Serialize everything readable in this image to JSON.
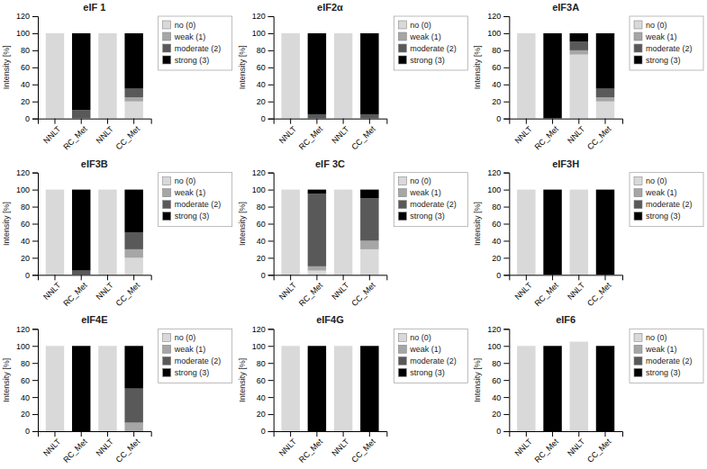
{
  "chart_data": [
    {
      "type": "bar",
      "title": "eIF 1",
      "stacked": true,
      "grid": false,
      "legend": "right",
      "categories": [
        "NNLT",
        "RC_Met",
        "NNLT",
        "CC_Met"
      ],
      "y_label": "Intensity [%]",
      "ylim": [
        0,
        120
      ],
      "yticks": [
        0,
        20,
        40,
        60,
        80,
        100,
        120
      ],
      "series": [
        {
          "name": "no (0)",
          "color": "#d9d9d9",
          "values": [
            100,
            0,
            100,
            20
          ]
        },
        {
          "name": "weak (1)",
          "color": "#a6a6a6",
          "values": [
            0,
            0,
            0,
            5
          ]
        },
        {
          "name": "moderate (2)",
          "color": "#595959",
          "values": [
            0,
            10,
            0,
            10
          ]
        },
        {
          "name": "strong (3)",
          "color": "#000000",
          "values": [
            0,
            90,
            0,
            65
          ]
        }
      ]
    },
    {
      "type": "bar",
      "title": "eIF2α",
      "stacked": true,
      "grid": false,
      "legend": "right",
      "categories": [
        "NNLT",
        "RC_Met",
        "NNLT",
        "CC_Met"
      ],
      "y_label": "Intensity [%]",
      "ylim": [
        0,
        120
      ],
      "yticks": [
        0,
        20,
        40,
        60,
        80,
        100,
        120
      ],
      "series": [
        {
          "name": "no (0)",
          "color": "#d9d9d9",
          "values": [
            100,
            0,
            100,
            0
          ]
        },
        {
          "name": "weak (1)",
          "color": "#a6a6a6",
          "values": [
            0,
            0,
            0,
            0
          ]
        },
        {
          "name": "moderate (2)",
          "color": "#595959",
          "values": [
            0,
            5,
            0,
            5
          ]
        },
        {
          "name": "strong (3)",
          "color": "#000000",
          "values": [
            0,
            95,
            0,
            95
          ]
        }
      ]
    },
    {
      "type": "bar",
      "title": "eIF3A",
      "stacked": true,
      "grid": false,
      "legend": "right",
      "categories": [
        "NNLT",
        "RC_Met",
        "NNLT",
        "CC_Met"
      ],
      "y_label": "Intensity [%]",
      "ylim": [
        0,
        120
      ],
      "yticks": [
        0,
        20,
        40,
        60,
        80,
        100,
        120
      ],
      "series": [
        {
          "name": "no (0)",
          "color": "#d9d9d9",
          "values": [
            100,
            0,
            75,
            20
          ]
        },
        {
          "name": "weak (1)",
          "color": "#a6a6a6",
          "values": [
            0,
            0,
            5,
            5
          ]
        },
        {
          "name": "moderate (2)",
          "color": "#595959",
          "values": [
            0,
            0,
            10,
            10
          ]
        },
        {
          "name": "strong (3)",
          "color": "#000000",
          "values": [
            0,
            100,
            10,
            65
          ]
        }
      ]
    },
    {
      "type": "bar",
      "title": "eIF3B",
      "stacked": true,
      "grid": false,
      "legend": "right",
      "categories": [
        "NNLT",
        "RC_Met",
        "NNLT",
        "CC_Met"
      ],
      "y_label": "Intensity [%]",
      "ylim": [
        0,
        120
      ],
      "yticks": [
        0,
        20,
        40,
        60,
        80,
        100,
        120
      ],
      "series": [
        {
          "name": "no (0)",
          "color": "#d9d9d9",
          "values": [
            100,
            0,
            100,
            20
          ]
        },
        {
          "name": "weak (1)",
          "color": "#a6a6a6",
          "values": [
            0,
            0,
            0,
            10
          ]
        },
        {
          "name": "moderate (2)",
          "color": "#595959",
          "values": [
            0,
            5,
            0,
            20
          ]
        },
        {
          "name": "strong (3)",
          "color": "#000000",
          "values": [
            0,
            95,
            0,
            50
          ]
        }
      ]
    },
    {
      "type": "bar",
      "title": "eIF 3C",
      "stacked": true,
      "grid": false,
      "legend": "right",
      "categories": [
        "NNLT",
        "RC_Met",
        "NNLT",
        "CC_Met"
      ],
      "y_label": "Intensity [%]",
      "ylim": [
        0,
        120
      ],
      "yticks": [
        0,
        20,
        40,
        60,
        80,
        100,
        120
      ],
      "series": [
        {
          "name": "no (0)",
          "color": "#d9d9d9",
          "values": [
            100,
            5,
            100,
            30
          ]
        },
        {
          "name": "weak (1)",
          "color": "#a6a6a6",
          "values": [
            0,
            5,
            0,
            10
          ]
        },
        {
          "name": "moderate (2)",
          "color": "#595959",
          "values": [
            0,
            85,
            0,
            50
          ]
        },
        {
          "name": "strong (3)",
          "color": "#000000",
          "values": [
            0,
            5,
            0,
            10
          ]
        }
      ]
    },
    {
      "type": "bar",
      "title": "eIF3H",
      "stacked": true,
      "grid": false,
      "legend": "right",
      "categories": [
        "NNLT",
        "RC_Met",
        "NNLT",
        "CC_Met"
      ],
      "y_label": "Intensity [%]",
      "ylim": [
        0,
        120
      ],
      "yticks": [
        0,
        20,
        40,
        60,
        80,
        100,
        120
      ],
      "series": [
        {
          "name": "no (0)",
          "color": "#d9d9d9",
          "values": [
            100,
            0,
            100,
            0
          ]
        },
        {
          "name": "weak (1)",
          "color": "#a6a6a6",
          "values": [
            0,
            0,
            0,
            0
          ]
        },
        {
          "name": "moderate (2)",
          "color": "#595959",
          "values": [
            0,
            0,
            0,
            0
          ]
        },
        {
          "name": "strong (3)",
          "color": "#000000",
          "values": [
            0,
            100,
            0,
            100
          ]
        }
      ]
    },
    {
      "type": "bar",
      "title": "eIF4E",
      "stacked": true,
      "grid": false,
      "legend": "right",
      "categories": [
        "NNLT",
        "RC_Met",
        "NNLT",
        "CC_Met"
      ],
      "y_label": "Intensity [%]",
      "ylim": [
        0,
        120
      ],
      "yticks": [
        0,
        20,
        40,
        60,
        80,
        100,
        120
      ],
      "series": [
        {
          "name": "no (0)",
          "color": "#d9d9d9",
          "values": [
            100,
            0,
            100,
            0
          ]
        },
        {
          "name": "weak (1)",
          "color": "#a6a6a6",
          "values": [
            0,
            0,
            0,
            10
          ]
        },
        {
          "name": "moderate (2)",
          "color": "#595959",
          "values": [
            0,
            0,
            0,
            40
          ]
        },
        {
          "name": "strong (3)",
          "color": "#000000",
          "values": [
            0,
            100,
            0,
            50
          ]
        }
      ]
    },
    {
      "type": "bar",
      "title": "eIF4G",
      "stacked": true,
      "grid": false,
      "legend": "right",
      "categories": [
        "NNLT",
        "RC_Met",
        "NNLT",
        "CC_Met"
      ],
      "y_label": "Intensity [%]",
      "ylim": [
        0,
        120
      ],
      "yticks": [
        0,
        20,
        40,
        60,
        80,
        100,
        120
      ],
      "series": [
        {
          "name": "no (0)",
          "color": "#d9d9d9",
          "values": [
            100,
            0,
            100,
            0
          ]
        },
        {
          "name": "weak (1)",
          "color": "#a6a6a6",
          "values": [
            0,
            0,
            0,
            0
          ]
        },
        {
          "name": "moderate (2)",
          "color": "#595959",
          "values": [
            0,
            0,
            0,
            0
          ]
        },
        {
          "name": "strong (3)",
          "color": "#000000",
          "values": [
            0,
            100,
            0,
            100
          ]
        }
      ]
    },
    {
      "type": "bar",
      "title": "eIF6",
      "stacked": true,
      "grid": false,
      "legend": "right",
      "categories": [
        "NNLT",
        "RC_Met",
        "NNLT",
        "CC_Met"
      ],
      "y_label": "Intensity [%]",
      "ylim": [
        0,
        120
      ],
      "yticks": [
        0,
        20,
        40,
        60,
        80,
        100,
        120
      ],
      "series": [
        {
          "name": "no (0)",
          "color": "#d9d9d9",
          "values": [
            100,
            0,
            105,
            0
          ]
        },
        {
          "name": "weak (1)",
          "color": "#a6a6a6",
          "values": [
            0,
            0,
            0,
            0
          ]
        },
        {
          "name": "moderate (2)",
          "color": "#595959",
          "values": [
            0,
            0,
            0,
            0
          ]
        },
        {
          "name": "strong (3)",
          "color": "#000000",
          "values": [
            0,
            100,
            0,
            100
          ]
        }
      ]
    }
  ]
}
